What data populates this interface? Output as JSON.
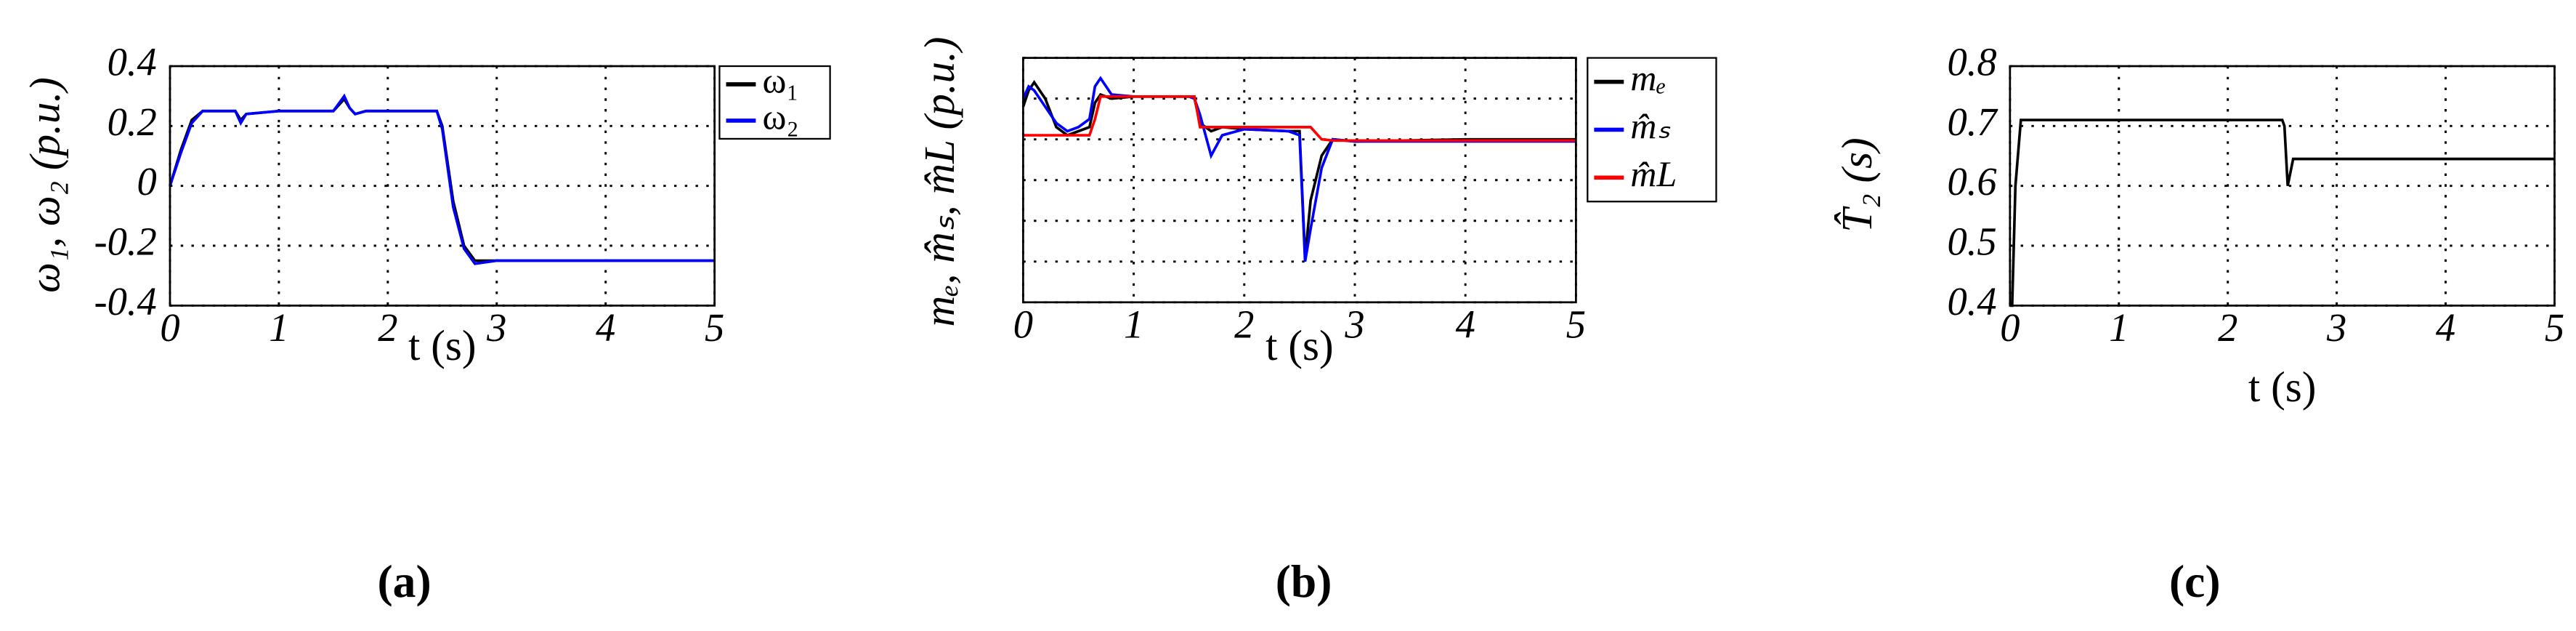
{
  "chart_data": [
    {
      "type": "line",
      "panel_label": "(a)",
      "x_label": "t (s)",
      "y_label": "ω₁, ω₂ (p.u.)",
      "x": [
        0,
        0.1,
        0.2,
        0.3,
        0.5,
        0.6,
        0.65,
        0.7,
        1,
        1.5,
        1.6,
        1.65,
        1.7,
        1.8,
        2,
        2.45,
        2.5,
        2.6,
        2.7,
        2.8,
        3,
        4,
        5
      ],
      "series": [
        {
          "name": "ω₁",
          "color": "#000000",
          "values": [
            0,
            0.12,
            0.22,
            0.25,
            0.25,
            0.25,
            0.22,
            0.24,
            0.25,
            0.25,
            0.29,
            0.26,
            0.24,
            0.25,
            0.25,
            0.25,
            0.2,
            -0.05,
            -0.2,
            -0.25,
            -0.25,
            -0.25,
            -0.25
          ]
        },
        {
          "name": "ω₂",
          "color": "#0000ff",
          "values": [
            0,
            0.11,
            0.21,
            0.25,
            0.25,
            0.25,
            0.21,
            0.24,
            0.25,
            0.25,
            0.3,
            0.26,
            0.24,
            0.25,
            0.25,
            0.25,
            0.19,
            -0.07,
            -0.21,
            -0.26,
            -0.25,
            -0.25,
            -0.25
          ]
        }
      ],
      "xlim": [
        0,
        5
      ],
      "xticks": [
        0,
        1,
        2,
        3,
        4,
        5
      ],
      "ylim": [
        -0.4,
        0.4
      ],
      "yticks": [
        -0.4,
        -0.2,
        0,
        0.2,
        0.4
      ],
      "ytick_labels": true,
      "grid": true,
      "legend": "outside-right"
    },
    {
      "type": "line",
      "panel_label": "(b)",
      "x_label": "t (s)",
      "y_label": "mₑ, m̂ₛ, m̂L (p.u.)",
      "x": [
        0,
        0.05,
        0.1,
        0.2,
        0.3,
        0.4,
        0.5,
        0.6,
        0.65,
        0.7,
        0.8,
        1,
        1.5,
        1.55,
        1.6,
        1.7,
        1.8,
        2,
        2.4,
        2.5,
        2.55,
        2.6,
        2.7,
        2.8,
        3,
        4,
        5
      ],
      "series": [
        {
          "name": "mₑ",
          "color": "#000000",
          "values": [
            4.8,
            5.2,
            5.4,
            5.0,
            4.3,
            4.1,
            4.2,
            4.3,
            4.9,
            5.1,
            5.0,
            5.05,
            5.05,
            5.0,
            4.4,
            4.2,
            4.3,
            4.25,
            4.2,
            4.2,
            1.1,
            2.5,
            3.6,
            4.0,
            3.95,
            4.0,
            4.0
          ]
        },
        {
          "name": "m̂ₛ",
          "color": "#0000ff",
          "values": [
            5.0,
            5.3,
            5.2,
            4.8,
            4.4,
            4.2,
            4.3,
            4.5,
            5.3,
            5.5,
            5.1,
            5.05,
            5.05,
            5.0,
            4.6,
            3.6,
            4.1,
            4.25,
            4.2,
            4.1,
            1.0,
            1.8,
            3.3,
            4.0,
            3.95,
            3.95,
            3.95
          ]
        },
        {
          "name": "m̂L",
          "color": "#ff0000",
          "values": [
            4.1,
            4.1,
            4.1,
            4.1,
            4.1,
            4.1,
            4.1,
            4.1,
            4.5,
            5.05,
            5.05,
            5.05,
            5.05,
            5.05,
            4.3,
            4.3,
            4.3,
            4.3,
            4.3,
            4.3,
            4.3,
            4.3,
            4.0,
            3.97,
            3.97,
            3.97,
            3.97
          ]
        }
      ],
      "xlim": [
        0,
        5
      ],
      "xticks": [
        0,
        1,
        2,
        3,
        4,
        5
      ],
      "ylim": [
        0,
        6
      ],
      "yticks": [
        0,
        1,
        2,
        3,
        4,
        5,
        6
      ],
      "ytick_labels": false,
      "grid": true,
      "legend": "outside-right"
    },
    {
      "type": "line",
      "panel_label": "(c)",
      "x_label": "t (s)",
      "y_label": "T̂₂ (s)",
      "x": [
        0,
        0.02,
        0.05,
        0.1,
        2.5,
        2.52,
        2.55,
        2.6,
        5
      ],
      "series": [
        {
          "color": "#000000",
          "values": [
            0.4,
            0.4,
            0.6,
            0.71,
            0.71,
            0.7,
            0.6,
            0.645,
            0.645
          ]
        }
      ],
      "xlim": [
        0,
        5
      ],
      "xticks": [
        0,
        1,
        2,
        3,
        4,
        5
      ],
      "ylim": [
        0.4,
        0.8
      ],
      "yticks": [
        0.4,
        0.5,
        0.6,
        0.7,
        0.8
      ],
      "ytick_labels": true,
      "grid": true
    }
  ]
}
